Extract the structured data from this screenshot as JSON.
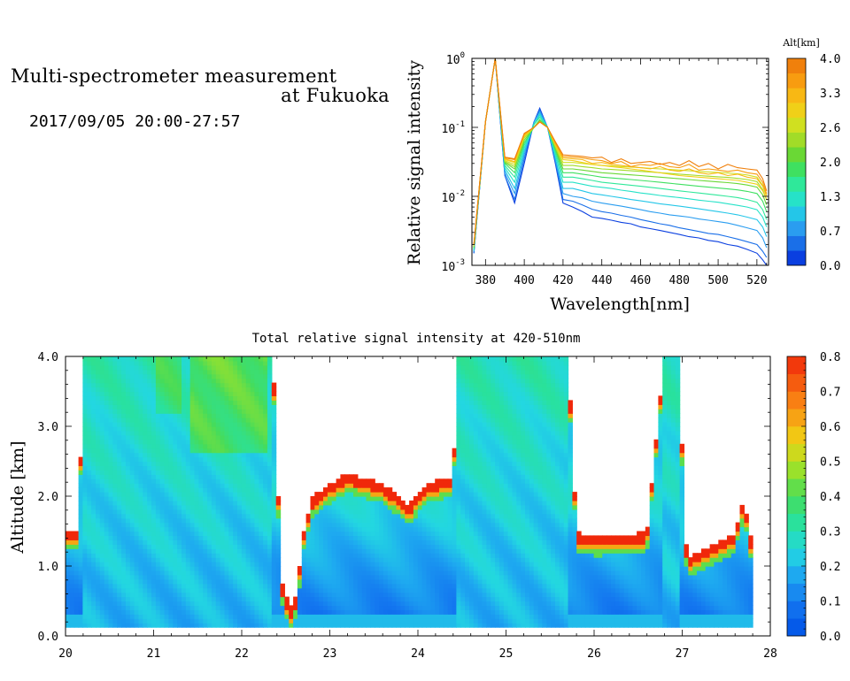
{
  "header": {
    "title_line1": "Multi-spectrometer measurement",
    "title_line2": "at Fukuoka",
    "time_range": "2017/09/05 20:00-27:57"
  },
  "chart_data": [
    {
      "type": "line",
      "xlabel": "Wavelength[nm]",
      "ylabel": "Relative signal intensity",
      "yscale": "log",
      "xlim": [
        373,
        526
      ],
      "ylim": [
        0.001,
        1.0
      ],
      "x_ticks": [
        "380",
        "400",
        "420",
        "440",
        "460",
        "480",
        "500",
        "520"
      ],
      "y_ticks": [
        {
          "base": "10",
          "exp": "-3"
        },
        {
          "base": "10",
          "exp": "-2"
        },
        {
          "base": "10",
          "exp": "-1"
        },
        {
          "base": "10",
          "exp": "0"
        }
      ],
      "colorbar": {
        "title": "Alt[km]",
        "tick_labels": [
          "0.0",
          "0.7",
          "1.3",
          "2.0",
          "2.6",
          "3.3",
          "4.0"
        ],
        "colors": [
          "#0a3fe0",
          "#1a6fe8",
          "#2a9df0",
          "#24c6e8",
          "#26e2c8",
          "#2fe89a",
          "#3fe060",
          "#6ad835",
          "#a2dc28",
          "#d0e020",
          "#f0d018",
          "#f8b814",
          "#f89c10",
          "#f0800c"
        ]
      },
      "x": [
        374,
        380,
        385,
        390,
        395,
        400,
        405,
        408,
        412,
        416,
        420,
        425,
        430,
        435,
        440,
        445,
        450,
        455,
        460,
        465,
        470,
        475,
        480,
        485,
        490,
        495,
        500,
        505,
        510,
        515,
        520,
        523,
        525
      ],
      "series": [
        {
          "color": "#0a3fe0",
          "values": [
            0.0015,
            0.12,
            1.0,
            0.02,
            0.008,
            0.03,
            0.12,
            0.19,
            0.1,
            0.03,
            0.008,
            0.007,
            0.006,
            0.005,
            0.0048,
            0.0045,
            0.0042,
            0.004,
            0.0036,
            0.0034,
            0.0032,
            0.003,
            0.0028,
            0.0026,
            0.0025,
            0.0023,
            0.0022,
            0.002,
            0.0019,
            0.0017,
            0.0015,
            0.0012,
            0.001
          ]
        },
        {
          "color": "#1a6fe8",
          "values": [
            0.0015,
            0.12,
            1.0,
            0.02,
            0.009,
            0.035,
            0.12,
            0.18,
            0.1,
            0.032,
            0.009,
            0.0085,
            0.0075,
            0.0065,
            0.006,
            0.0057,
            0.0053,
            0.005,
            0.0046,
            0.0043,
            0.004,
            0.0038,
            0.0035,
            0.0033,
            0.0031,
            0.0029,
            0.0028,
            0.0026,
            0.0024,
            0.0022,
            0.002,
            0.0016,
            0.0013
          ]
        },
        {
          "color": "#2a9df0",
          "values": [
            0.0016,
            0.12,
            1.0,
            0.022,
            0.011,
            0.04,
            0.12,
            0.17,
            0.1,
            0.034,
            0.011,
            0.01,
            0.0095,
            0.0085,
            0.008,
            0.0076,
            0.0072,
            0.0068,
            0.0064,
            0.006,
            0.0057,
            0.0054,
            0.0052,
            0.005,
            0.0047,
            0.0045,
            0.0043,
            0.0041,
            0.0038,
            0.0035,
            0.0032,
            0.0025,
            0.0018
          ]
        },
        {
          "color": "#24c6e8",
          "values": [
            0.0016,
            0.12,
            1.0,
            0.024,
            0.013,
            0.045,
            0.11,
            0.16,
            0.1,
            0.036,
            0.013,
            0.013,
            0.012,
            0.011,
            0.0105,
            0.01,
            0.0095,
            0.009,
            0.0086,
            0.0082,
            0.0078,
            0.0075,
            0.0072,
            0.0069,
            0.0066,
            0.0063,
            0.006,
            0.0057,
            0.0054,
            0.005,
            0.0046,
            0.0036,
            0.0026
          ]
        },
        {
          "color": "#26e2c8",
          "values": [
            0.0017,
            0.12,
            1.0,
            0.026,
            0.016,
            0.05,
            0.11,
            0.15,
            0.1,
            0.04,
            0.016,
            0.016,
            0.015,
            0.014,
            0.0135,
            0.013,
            0.0123,
            0.0118,
            0.0112,
            0.0108,
            0.0103,
            0.0099,
            0.0096,
            0.0092,
            0.0088,
            0.0085,
            0.0082,
            0.0078,
            0.0074,
            0.007,
            0.0064,
            0.005,
            0.0036
          ]
        },
        {
          "color": "#2fe89a",
          "values": [
            0.0017,
            0.12,
            1.0,
            0.028,
            0.019,
            0.055,
            0.11,
            0.14,
            0.1,
            0.044,
            0.019,
            0.019,
            0.018,
            0.017,
            0.016,
            0.0155,
            0.015,
            0.0145,
            0.014,
            0.0135,
            0.013,
            0.0125,
            0.012,
            0.0116,
            0.0112,
            0.0108,
            0.0104,
            0.01,
            0.0096,
            0.009,
            0.0082,
            0.0064,
            0.0046
          ]
        },
        {
          "color": "#3fe060",
          "values": [
            0.0018,
            0.12,
            1.0,
            0.03,
            0.022,
            0.06,
            0.1,
            0.13,
            0.1,
            0.048,
            0.022,
            0.022,
            0.021,
            0.02,
            0.019,
            0.0185,
            0.018,
            0.0175,
            0.017,
            0.0165,
            0.016,
            0.0155,
            0.015,
            0.0145,
            0.014,
            0.0136,
            0.0132,
            0.0128,
            0.0124,
            0.0118,
            0.011,
            0.0085,
            0.006
          ]
        },
        {
          "color": "#6ad835",
          "values": [
            0.0018,
            0.12,
            1.0,
            0.031,
            0.025,
            0.065,
            0.1,
            0.125,
            0.1,
            0.05,
            0.025,
            0.025,
            0.024,
            0.023,
            0.022,
            0.0215,
            0.021,
            0.0205,
            0.02,
            0.0195,
            0.019,
            0.0185,
            0.018,
            0.0175,
            0.017,
            0.0166,
            0.0162,
            0.0158,
            0.0153,
            0.0146,
            0.0136,
            0.0105,
            0.0075
          ]
        },
        {
          "color": "#a2dc28",
          "values": [
            0.0019,
            0.12,
            1.0,
            0.032,
            0.027,
            0.07,
            0.1,
            0.12,
            0.1,
            0.052,
            0.028,
            0.028,
            0.027,
            0.026,
            0.025,
            0.0245,
            0.024,
            0.0235,
            0.023,
            0.0225,
            0.022,
            0.0215,
            0.021,
            0.0205,
            0.02,
            0.0196,
            0.0192,
            0.0188,
            0.0182,
            0.0175,
            0.0163,
            0.0125,
            0.009
          ]
        },
        {
          "color": "#d0e020",
          "values": [
            0.0019,
            0.12,
            1.0,
            0.033,
            0.029,
            0.072,
            0.1,
            0.12,
            0.1,
            0.054,
            0.031,
            0.031,
            0.03,
            0.029,
            0.028,
            0.0275,
            0.027,
            0.0265,
            0.026,
            0.0255,
            0.025,
            0.0245,
            0.024,
            0.0235,
            0.023,
            0.0226,
            0.0222,
            0.0218,
            0.0212,
            0.0204,
            0.019,
            0.0145,
            0.0105
          ]
        },
        {
          "color": "#f0d018",
          "values": [
            0.002,
            0.12,
            1.0,
            0.034,
            0.031,
            0.075,
            0.1,
            0.12,
            0.1,
            0.056,
            0.034,
            0.033,
            0.031,
            0.029,
            0.028,
            0.027,
            0.026,
            0.025,
            0.024,
            0.023,
            0.022,
            0.021,
            0.02,
            0.0195,
            0.019,
            0.0185,
            0.018,
            0.0175,
            0.017,
            0.016,
            0.015,
            0.012,
            0.009
          ]
        },
        {
          "color": "#f8b814",
          "values": [
            0.002,
            0.12,
            1.0,
            0.035,
            0.032,
            0.078,
            0.1,
            0.12,
            0.1,
            0.058,
            0.036,
            0.035,
            0.034,
            0.03,
            0.031,
            0.029,
            0.028,
            0.027,
            0.026,
            0.025,
            0.027,
            0.024,
            0.023,
            0.025,
            0.022,
            0.021,
            0.022,
            0.02,
            0.021,
            0.019,
            0.018,
            0.014,
            0.01
          ]
        },
        {
          "color": "#f89c10",
          "values": [
            0.002,
            0.12,
            1.0,
            0.036,
            0.034,
            0.08,
            0.1,
            0.12,
            0.1,
            0.06,
            0.038,
            0.037,
            0.036,
            0.034,
            0.033,
            0.03,
            0.032,
            0.027,
            0.029,
            0.028,
            0.03,
            0.027,
            0.026,
            0.029,
            0.024,
            0.025,
            0.024,
            0.023,
            0.024,
            0.022,
            0.021,
            0.016,
            0.011
          ]
        },
        {
          "color": "#f0800c",
          "values": [
            0.002,
            0.12,
            1.0,
            0.037,
            0.035,
            0.082,
            0.1,
            0.12,
            0.1,
            0.062,
            0.04,
            0.039,
            0.038,
            0.036,
            0.037,
            0.031,
            0.035,
            0.03,
            0.031,
            0.032,
            0.029,
            0.031,
            0.028,
            0.033,
            0.027,
            0.03,
            0.025,
            0.029,
            0.026,
            0.025,
            0.024,
            0.018,
            0.012
          ]
        }
      ]
    },
    {
      "type": "heatmap",
      "title": "Total relative signal intensity at 420-510nm",
      "ylabel": "Altitude [km]",
      "xlim": [
        20,
        28
      ],
      "ylim": [
        0.0,
        4.0
      ],
      "x_ticks": [
        "20",
        "21",
        "22",
        "23",
        "24",
        "25",
        "26",
        "27",
        "28"
      ],
      "y_ticks": [
        "0.0",
        "1.0",
        "2.0",
        "3.0",
        "4.0"
      ],
      "data_x_range": [
        20.0,
        27.8
      ],
      "data_y_floor": 0.15,
      "colorbar": {
        "tick_labels": [
          "0.0",
          "0.1",
          "0.2",
          "0.3",
          "0.4",
          "0.5",
          "0.6",
          "0.7",
          "0.8"
        ],
        "range": [
          0.0,
          0.8
        ]
      },
      "cloud_base_profile": {
        "time_hr": [
          20.0,
          20.15,
          20.2,
          22.35,
          22.45,
          22.55,
          22.62,
          22.7,
          22.8,
          22.9,
          23.0,
          23.2,
          23.6,
          23.9,
          24.1,
          24.4,
          24.45,
          24.6,
          24.8,
          25.0,
          25.2,
          25.5,
          25.7,
          25.8,
          26.0,
          26.6,
          26.8,
          26.95,
          27.05,
          27.3,
          27.6,
          27.7,
          27.8
        ],
        "altitude_km": [
          1.45,
          1.45,
          4.0,
          4.0,
          0.7,
          0.3,
          0.5,
          1.4,
          1.9,
          2.0,
          2.1,
          2.25,
          2.1,
          1.8,
          2.1,
          2.2,
          4.0,
          4.0,
          4.0,
          4.0,
          4.0,
          4.0,
          4.0,
          1.4,
          1.35,
          1.4,
          4.0,
          4.0,
          1.05,
          1.2,
          1.4,
          1.9,
          1.15
        ]
      }
    }
  ]
}
